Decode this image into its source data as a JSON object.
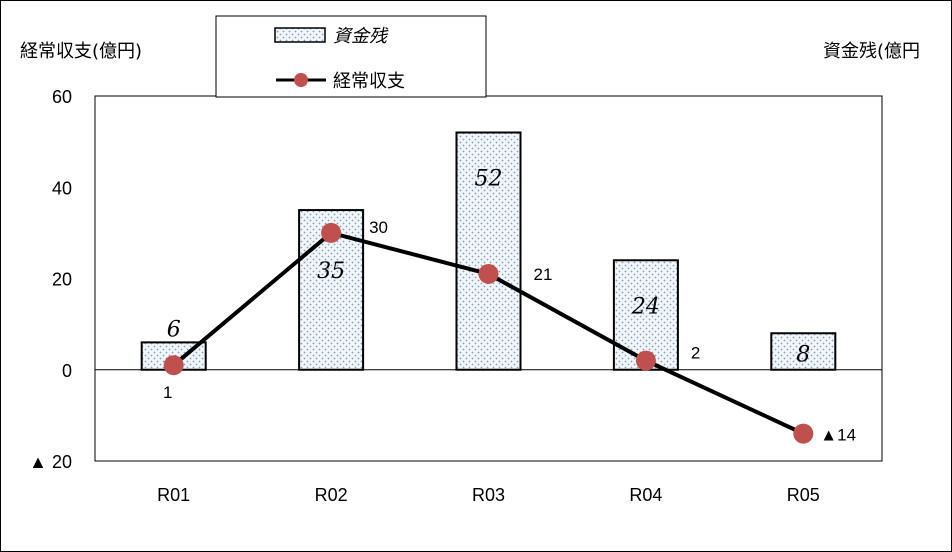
{
  "chart_data": {
    "type": "bar",
    "categories": [
      "R01",
      "R02",
      "R03",
      "R04",
      "R05"
    ],
    "y_left_label": "経常収支(億円)",
    "y_right_label": "資金残(億円",
    "ylim": [
      -20,
      60
    ],
    "yticks": [
      {
        "value": 60,
        "label": "60"
      },
      {
        "value": 40,
        "label": "40"
      },
      {
        "value": 20,
        "label": "20"
      },
      {
        "value": 0,
        "label": "0"
      },
      {
        "value": -20,
        "label": "▲ 20"
      }
    ],
    "series": [
      {
        "name": "資金残",
        "type": "bar",
        "values": [
          6,
          35,
          52,
          24,
          8
        ],
        "labels": [
          "6",
          "35",
          "52",
          "24",
          "8"
        ]
      },
      {
        "name": "経常収支",
        "type": "line",
        "values": [
          1,
          30,
          21,
          2,
          -14
        ],
        "labels": [
          "1",
          "30",
          "21",
          "2",
          "▲14"
        ]
      }
    ],
    "legend_position": "top-center",
    "colors": {
      "line": "#000000",
      "marker": "#c0504d",
      "bar_fill": "#f2f6fb",
      "bar_dots": "#7f9fbf"
    }
  }
}
